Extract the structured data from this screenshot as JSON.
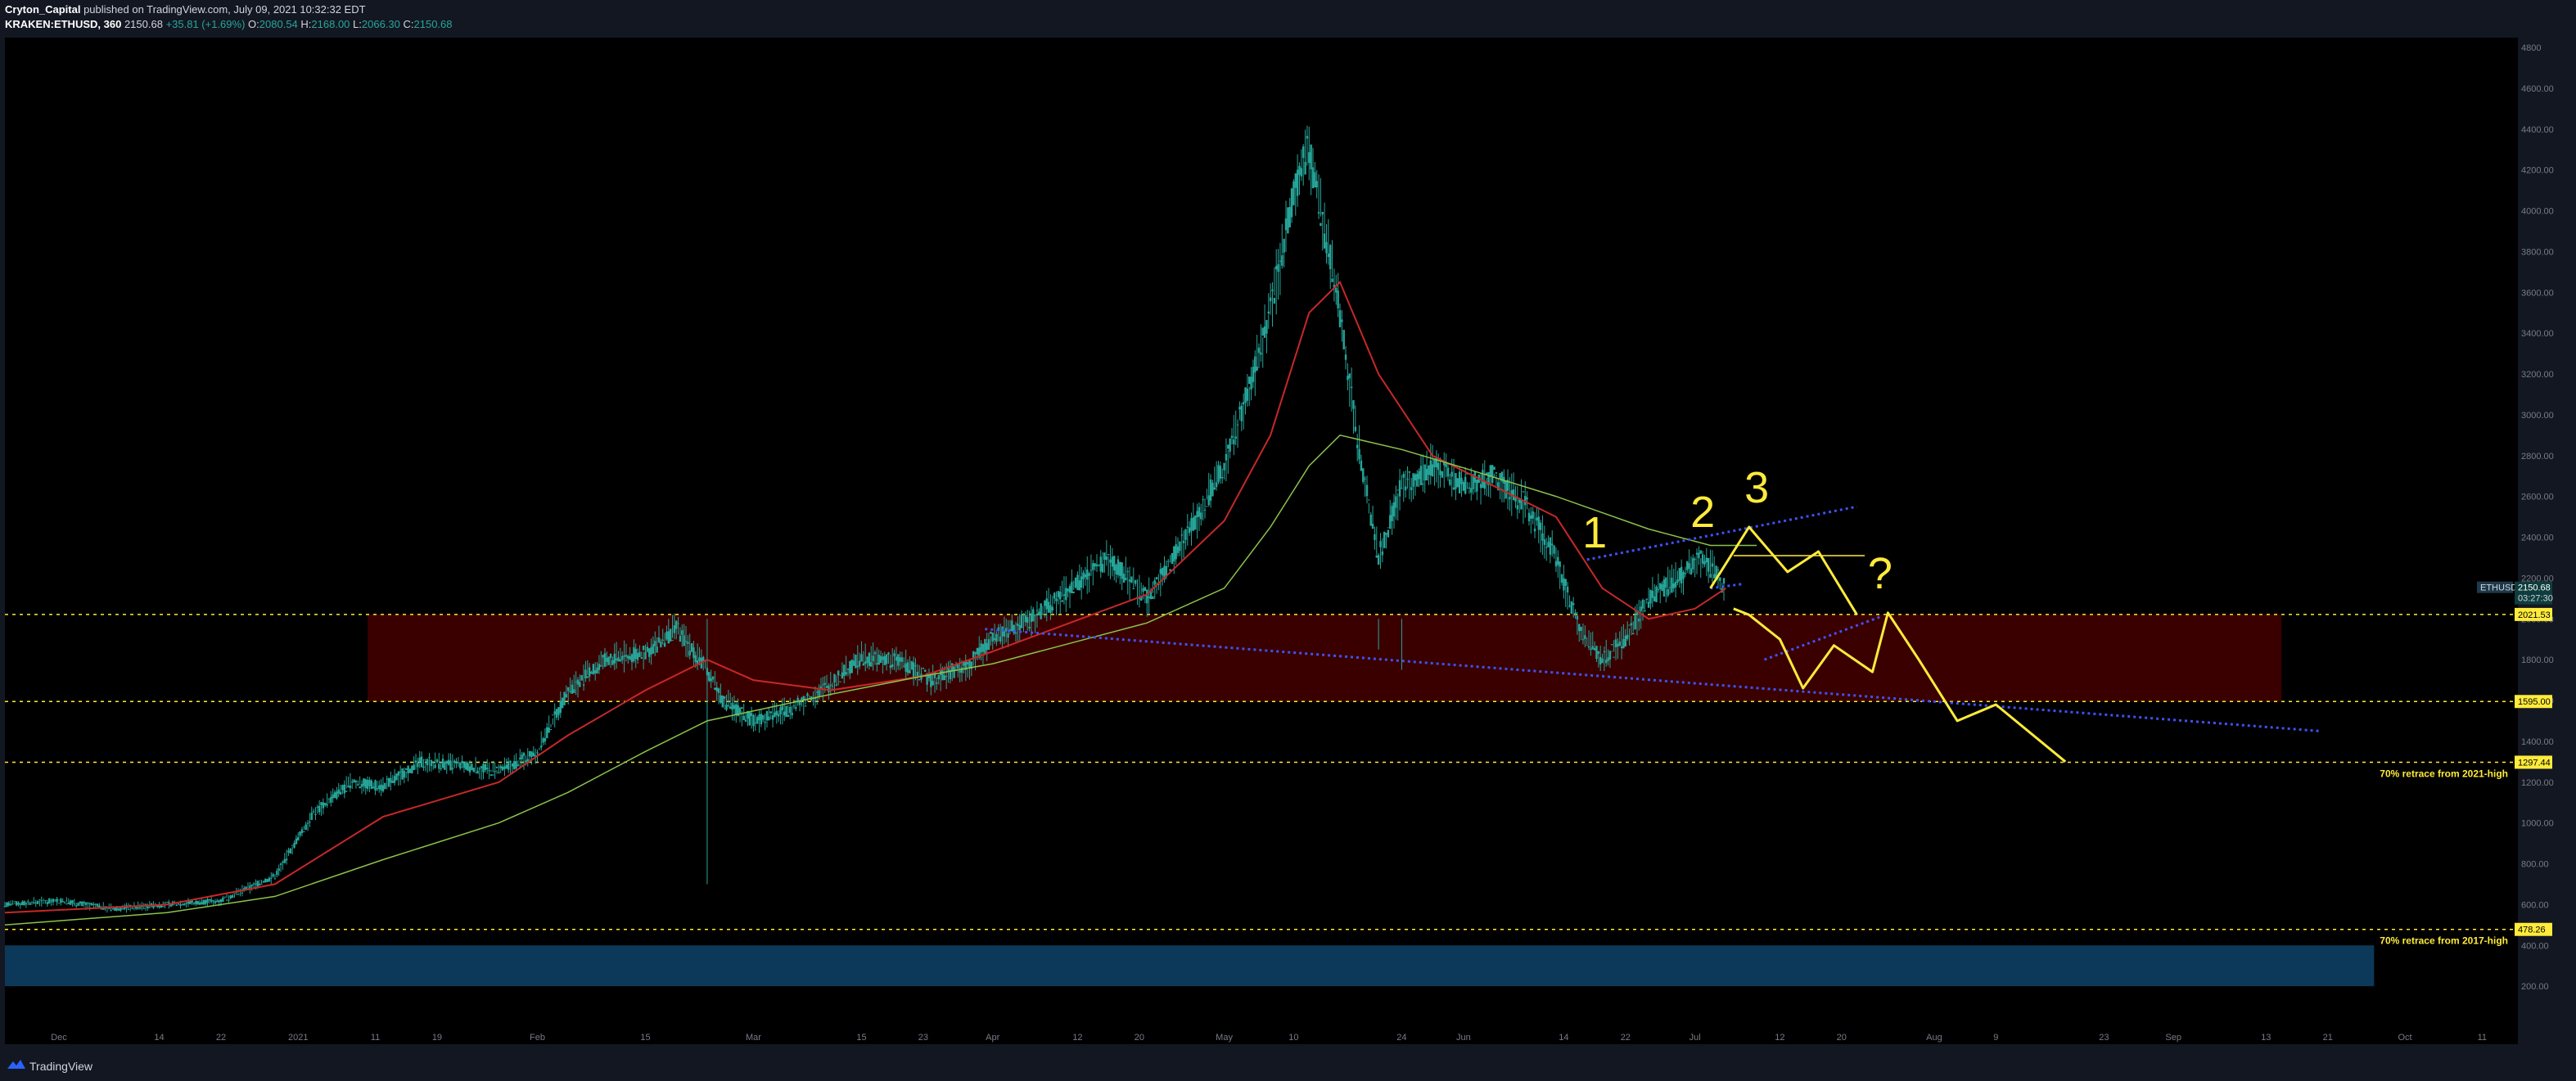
{
  "header": {
    "author": "Cryton_Capital",
    "published": " published on TradingView.com, July 09, 2021 10:32:32 EDT",
    "symbol": "KRAKEN:ETHUSD, 360",
    "last": "2150.68",
    "change": "+35.81 (+1.69%)",
    "o_label": "O:",
    "o": "2080.54",
    "h_label": "H:",
    "h": "2168.00",
    "l_label": "L:",
    "l": "2066.30",
    "c_label": "C:",
    "c": "2150.68"
  },
  "footer": {
    "brand": "TradingView"
  },
  "colors": {
    "background": "#000000",
    "frame": "#131722",
    "candle_teal": "#26a69a",
    "ma_fast": "#c62828",
    "ma_slow": "#8bc34a",
    "annotation_yellow": "#ffeb3b",
    "trendline_blue": "#3f51f5",
    "support_zone": "#3d0000",
    "low_zone": "#0d3b5e"
  },
  "chart_data": {
    "type": "line",
    "title": "KRAKEN:ETHUSD, 360",
    "xlabel": "",
    "ylabel": "",
    "ylim": [
      0,
      4800
    ],
    "grid": false,
    "y_ticks": [
      "4800",
      "4600.00",
      "4400.00",
      "4200.00",
      "4000.00",
      "3800.00",
      "3600.00",
      "3400.00",
      "3200.00",
      "3000.00",
      "2800.00",
      "2600.00",
      "2400.00",
      "2200.00",
      "2000.00",
      "1800.00",
      "1600.00",
      "1400.00",
      "1200.00",
      "1000.00",
      "800.00",
      "600.00",
      "400.00",
      "200.00"
    ],
    "x_ticks": [
      {
        "label": "Dec",
        "day": 0
      },
      {
        "label": "14",
        "day": 13
      },
      {
        "label": "22",
        "day": 21
      },
      {
        "label": "2021",
        "day": 31
      },
      {
        "label": "11",
        "day": 41
      },
      {
        "label": "19",
        "day": 49
      },
      {
        "label": "Feb",
        "day": 62
      },
      {
        "label": "15",
        "day": 76
      },
      {
        "label": "Mar",
        "day": 90
      },
      {
        "label": "15",
        "day": 104
      },
      {
        "label": "23",
        "day": 112
      },
      {
        "label": "Apr",
        "day": 121
      },
      {
        "label": "12",
        "day": 132
      },
      {
        "label": "20",
        "day": 140
      },
      {
        "label": "May",
        "day": 151
      },
      {
        "label": "10",
        "day": 160
      },
      {
        "label": "24",
        "day": 174
      },
      {
        "label": "Jun",
        "day": 182
      },
      {
        "label": "14",
        "day": 195
      },
      {
        "label": "22",
        "day": 203
      },
      {
        "label": "Jul",
        "day": 212
      },
      {
        "label": "12",
        "day": 223
      },
      {
        "label": "20",
        "day": 231
      },
      {
        "label": "Aug",
        "day": 243
      },
      {
        "label": "9",
        "day": 251
      },
      {
        "label": "23",
        "day": 265
      },
      {
        "label": "Sep",
        "day": 274
      },
      {
        "label": "13",
        "day": 286
      },
      {
        "label": "21",
        "day": 294
      },
      {
        "label": "Oct",
        "day": 304
      },
      {
        "label": "11",
        "day": 314
      }
    ],
    "x_start_day": -7,
    "x_end_day": 318,
    "series": [
      {
        "type": "candles",
        "values": [
          [
            -7,
            600
          ],
          [
            0,
            620
          ],
          [
            7,
            580
          ],
          [
            14,
            600
          ],
          [
            21,
            620
          ],
          [
            28,
            740
          ],
          [
            33,
            1050
          ],
          [
            38,
            1200
          ],
          [
            42,
            1180
          ],
          [
            47,
            1300
          ],
          [
            52,
            1280
          ],
          [
            57,
            1250
          ],
          [
            62,
            1350
          ],
          [
            66,
            1650
          ],
          [
            71,
            1800
          ],
          [
            76,
            1830
          ],
          [
            80,
            1950
          ],
          [
            84,
            1750
          ],
          [
            86,
            1600
          ],
          [
            90,
            1500
          ],
          [
            95,
            1560
          ],
          [
            100,
            1680
          ],
          [
            104,
            1810
          ],
          [
            109,
            1790
          ],
          [
            113,
            1700
          ],
          [
            118,
            1780
          ],
          [
            121,
            1910
          ],
          [
            126,
            2000
          ],
          [
            131,
            2140
          ],
          [
            136,
            2300
          ],
          [
            141,
            2100
          ],
          [
            146,
            2400
          ],
          [
            151,
            2750
          ],
          [
            154,
            3100
          ],
          [
            157,
            3500
          ],
          [
            160,
            4100
          ],
          [
            162,
            4300
          ],
          [
            164,
            3900
          ],
          [
            166,
            3500
          ],
          [
            169,
            2700
          ],
          [
            171,
            2300
          ],
          [
            174,
            2650
          ],
          [
            178,
            2750
          ],
          [
            182,
            2650
          ],
          [
            186,
            2700
          ],
          [
            190,
            2560
          ],
          [
            194,
            2300
          ],
          [
            197,
            1950
          ],
          [
            200,
            1800
          ],
          [
            203,
            1900
          ],
          [
            206,
            2100
          ],
          [
            210,
            2200
          ],
          [
            213,
            2300
          ],
          [
            216,
            2150
          ]
        ]
      },
      {
        "type": "line",
        "values": [
          [
            -7,
            560
          ],
          [
            14,
            600
          ],
          [
            28,
            700
          ],
          [
            42,
            1030
          ],
          [
            57,
            1200
          ],
          [
            66,
            1430
          ],
          [
            76,
            1650
          ],
          [
            84,
            1800
          ],
          [
            90,
            1700
          ],
          [
            100,
            1650
          ],
          [
            112,
            1720
          ],
          [
            121,
            1840
          ],
          [
            131,
            1980
          ],
          [
            141,
            2120
          ],
          [
            151,
            2480
          ],
          [
            157,
            2900
          ],
          [
            162,
            3500
          ],
          [
            166,
            3650
          ],
          [
            171,
            3200
          ],
          [
            178,
            2800
          ],
          [
            186,
            2650
          ],
          [
            194,
            2500
          ],
          [
            200,
            2150
          ],
          [
            206,
            2000
          ],
          [
            212,
            2050
          ],
          [
            216,
            2150
          ]
        ]
      },
      {
        "type": "line",
        "values": [
          [
            -7,
            500
          ],
          [
            14,
            560
          ],
          [
            28,
            640
          ],
          [
            42,
            820
          ],
          [
            57,
            1000
          ],
          [
            66,
            1150
          ],
          [
            76,
            1350
          ],
          [
            84,
            1500
          ],
          [
            100,
            1630
          ],
          [
            112,
            1720
          ],
          [
            121,
            1780
          ],
          [
            131,
            1880
          ],
          [
            141,
            1980
          ],
          [
            151,
            2150
          ],
          [
            157,
            2450
          ],
          [
            162,
            2750
          ],
          [
            166,
            2900
          ],
          [
            174,
            2830
          ],
          [
            182,
            2740
          ],
          [
            194,
            2600
          ],
          [
            206,
            2440
          ],
          [
            214,
            2360
          ],
          [
            220,
            2360
          ]
        ]
      }
    ],
    "horizontal_levels": [
      {
        "value": 2021.53,
        "tag": "2021.53"
      },
      {
        "value": 1595.0,
        "tag": "1595.00"
      },
      {
        "value": 1297.44,
        "tag": "1297.44",
        "caption": "70% retrace from 2021-high"
      },
      {
        "value": 478.26,
        "tag": "478.26",
        "caption": "70% retrace from 2017-high"
      }
    ],
    "price_label": {
      "symbol": "ETHUSD",
      "value": "2150.68",
      "countdown": "03:27:30",
      "y": 2150.68
    },
    "zones": [
      {
        "name": "support-zone",
        "x0": 40,
        "x1": 288,
        "y0": 1595,
        "y1": 2021.53
      },
      {
        "name": "low-zone",
        "x0": -7,
        "x1": 300,
        "y0": 200,
        "y1": 400
      }
    ],
    "trendlines": [
      {
        "points": [
          [
            120,
            1950
          ],
          [
            293,
            1450
          ]
        ]
      },
      {
        "points": [
          [
            198,
            2290
          ],
          [
            233,
            2550
          ]
        ]
      },
      {
        "points": [
          [
            214,
            2150
          ],
          [
            218,
            2170
          ]
        ]
      },
      {
        "points": [
          [
            221,
            1800
          ],
          [
            236,
            2010
          ]
        ]
      }
    ],
    "projection": {
      "paths": [
        [
          [
            214,
            2150
          ],
          [
            219,
            2450
          ],
          [
            224,
            2230
          ],
          [
            228,
            2330
          ],
          [
            233,
            2020
          ]
        ],
        [
          [
            217,
            2050
          ],
          [
            219,
            2020
          ],
          [
            223,
            1900
          ],
          [
            226,
            1660
          ],
          [
            230,
            1870
          ],
          [
            235,
            1740
          ],
          [
            237,
            2030
          ],
          [
            241,
            1800
          ],
          [
            246,
            1500
          ],
          [
            251,
            1580
          ],
          [
            260,
            1300
          ]
        ]
      ],
      "labels": [
        {
          "text": "1",
          "x": 199,
          "y": 2350
        },
        {
          "text": "2",
          "x": 213,
          "y": 2450
        },
        {
          "text": "3",
          "x": 220,
          "y": 2570
        },
        {
          "text": "?",
          "x": 236,
          "y": 2150
        }
      ],
      "box_line": [
        [
          217,
          2310
        ],
        [
          234,
          2310
        ]
      ]
    }
  }
}
